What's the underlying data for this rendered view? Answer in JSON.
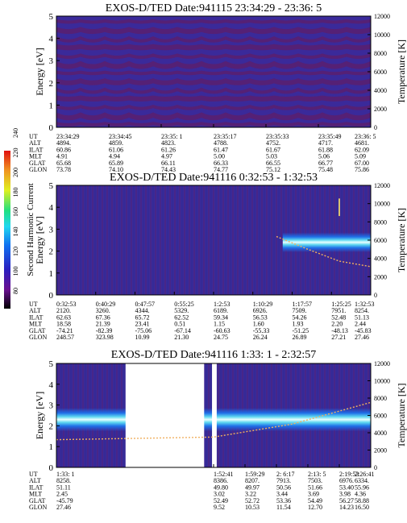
{
  "figure": {
    "colorbar": {
      "title": "Second Harmonic Current",
      "ticks": [
        "80",
        "100",
        "120",
        "140",
        "160",
        "180",
        "200",
        "220",
        "240"
      ]
    },
    "colors": {
      "background": "#3a2a9a",
      "stripe_dark": "#5a1f6e",
      "band_core": "#ffffff",
      "band_mid": "#5ed8f0",
      "band_outer": "#1f6fe8",
      "trace": "#f0b060"
    }
  },
  "chart_data": [
    {
      "type": "heatmap",
      "title": "EXOS-D/TED   Date:941115  23:34:29 - 23:36: 5",
      "ylabel": "Energy [eV]",
      "ylabel_right": "Temperature [K]",
      "ylim": [
        0,
        5
      ],
      "ylim_right": [
        0,
        12000
      ],
      "y_ticks": [
        "0",
        "1",
        "2",
        "3",
        "4",
        "5"
      ],
      "y_ticks_right": [
        "0",
        "2000",
        "4000",
        "6000",
        "8000",
        "10000",
        "12000"
      ],
      "x_ticks": [
        "23:34:29",
        "23:34:45",
        "23:35: 1",
        "23:35:17",
        "23:35:33",
        "23:35:49",
        "23:36: 5"
      ],
      "row_labels": [
        "UT",
        "ALT",
        "ILAT",
        "MLT",
        "GLAT",
        "GLON"
      ],
      "rows": [
        [
          "23:34:29",
          "23:34:45",
          "23:35: 1",
          "23:35:17",
          "23:35:33",
          "23:35:49",
          "23:36: 5"
        ],
        [
          "4894.",
          "4859.",
          "4823.",
          "4788.",
          "4752.",
          "4717.",
          "4681."
        ],
        [
          "60.86",
          "61.06",
          "61.26",
          "61.47",
          "61.67",
          "61.88",
          "62.09"
        ],
        [
          "4.91",
          "4.94",
          "4.97",
          "5.00",
          "5.03",
          "5.06",
          "5.09"
        ],
        [
          "65.68",
          "65.89",
          "66.11",
          "66.33",
          "66.55",
          "66.77",
          "67.00"
        ],
        [
          "73.78",
          "74.10",
          "74.43",
          "74.77",
          "75.12",
          "75.48",
          "75.86"
        ]
      ],
      "band": null
    },
    {
      "type": "heatmap",
      "title": "EXOS-D/TED   Date:941116  0:32:53 - 1:32:53",
      "ylabel": "Energy [eV]",
      "ylabel_right": "Temperature [K]",
      "ylim": [
        0,
        5
      ],
      "ylim_right": [
        0,
        12000
      ],
      "y_ticks": [
        "0",
        "1",
        "2",
        "3",
        "4",
        "5"
      ],
      "y_ticks_right": [
        "0",
        "2000",
        "4000",
        "6000",
        "8000",
        "10000",
        "12000"
      ],
      "x_ticks": [
        "0:32:53",
        "0:40:29",
        "0:47:57",
        "0:55:25",
        "1:02:53",
        "1:10:29",
        "1:17:57",
        "1:25:25",
        "1:32:53"
      ],
      "row_labels": [
        "UT",
        "ALT",
        "ILAT",
        "MLT",
        "GLAT",
        "GLON"
      ],
      "rows": [
        [
          "0:32:53",
          "0:40:29",
          "0:47:57",
          "0:55:25",
          "1:2:53",
          "1:10:29",
          "1:17:57",
          "1:25:25",
          "1:32:53"
        ],
        [
          "2120.",
          "3260.",
          "4344.",
          "5329.",
          "6189.",
          "6926.",
          "7509.",
          "7951.",
          "8254."
        ],
        [
          "62.63",
          "67.36",
          "65.72",
          "62.52",
          "59.34",
          "56.53",
          "54.26",
          "52.48",
          "51.13"
        ],
        [
          "18.58",
          "21.39",
          "23.41",
          "0.51",
          "1.15",
          "1.60",
          "1.93",
          "2.20",
          "2.44"
        ],
        [
          "-74.21",
          "-82.39",
          "-75.06",
          "-67.14",
          "-60.63",
          "-55.33",
          "-51.25",
          "-48.13",
          "-45.83"
        ],
        [
          "248.57",
          "323.98",
          "10.99",
          "21.30",
          "24.75",
          "26.24",
          "26.89",
          "27.21",
          "27.46"
        ]
      ],
      "band": {
        "energy_center": 2.4,
        "energy_halfwidth": 0.28,
        "x_start_frac": 0.72
      },
      "temperature_trace": {
        "x_frac": [
          0.7,
          0.8,
          0.9,
          1.0
        ],
        "temperature": [
          6400,
          5000,
          3700,
          3100
        ]
      },
      "vertical_marker": {
        "x_frac": 0.9,
        "energy": [
          3.6,
          4.4
        ]
      }
    },
    {
      "type": "heatmap",
      "title": "EXOS-D/TED   Date:941116  1:33: 1 - 2:32:57",
      "ylabel": "Energy [eV]",
      "ylabel_right": "Temperature [K]",
      "ylim": [
        0,
        5
      ],
      "ylim_right": [
        0,
        12000
      ],
      "y_ticks": [
        "0",
        "1",
        "2",
        "3",
        "4",
        "5"
      ],
      "y_ticks_right": [
        "0",
        "2000",
        "4000",
        "6000",
        "8000",
        "10000",
        "12000"
      ],
      "x_ticks": [
        "1:33: 1",
        "1:52:41",
        "1:59:29",
        "2: 6:17",
        "2:13: 5",
        "2:19:53",
        "2:26:41"
      ],
      "row_labels": [
        "UT",
        "ALT",
        "ILAT",
        "MLT",
        "GLAT",
        "GLON"
      ],
      "row_columns": [
        0,
        1,
        2,
        3,
        4,
        5,
        6
      ],
      "rows": [
        [
          "1:33: 1",
          "1:52:41",
          "1:59:29",
          "2: 6:17",
          "2:13: 5",
          "2:19:53",
          "2:26:41"
        ],
        [
          "8258.",
          "8386.",
          "8207.",
          "7913.",
          "7503.",
          "6976.",
          "6334."
        ],
        [
          "51.11",
          "49.80",
          "49.97",
          "50.56",
          "51.66",
          "53.40",
          "55.96"
        ],
        [
          "2.45",
          "3.02",
          "3.22",
          "3.44",
          "3.69",
          "3.98",
          "4.36"
        ],
        [
          "-45.79",
          "52.49",
          "52.72",
          "53.36",
          "54.49",
          "56.27",
          "58.88"
        ],
        [
          "27.46",
          "9.52",
          "10.53",
          "11.54",
          "12.70",
          "14.23",
          "16.50"
        ]
      ],
      "band": {
        "energy_center": 2.3,
        "energy_halfwidth": 0.35,
        "x_start_frac": 0.0
      },
      "data_gaps_x_frac": [
        [
          0.22,
          0.47
        ],
        [
          0.495,
          0.51
        ]
      ],
      "temperature_trace": {
        "x_frac": [
          0.0,
          0.5,
          0.75,
          1.0
        ],
        "temperature": [
          3200,
          3500,
          5000,
          7500
        ]
      }
    }
  ]
}
